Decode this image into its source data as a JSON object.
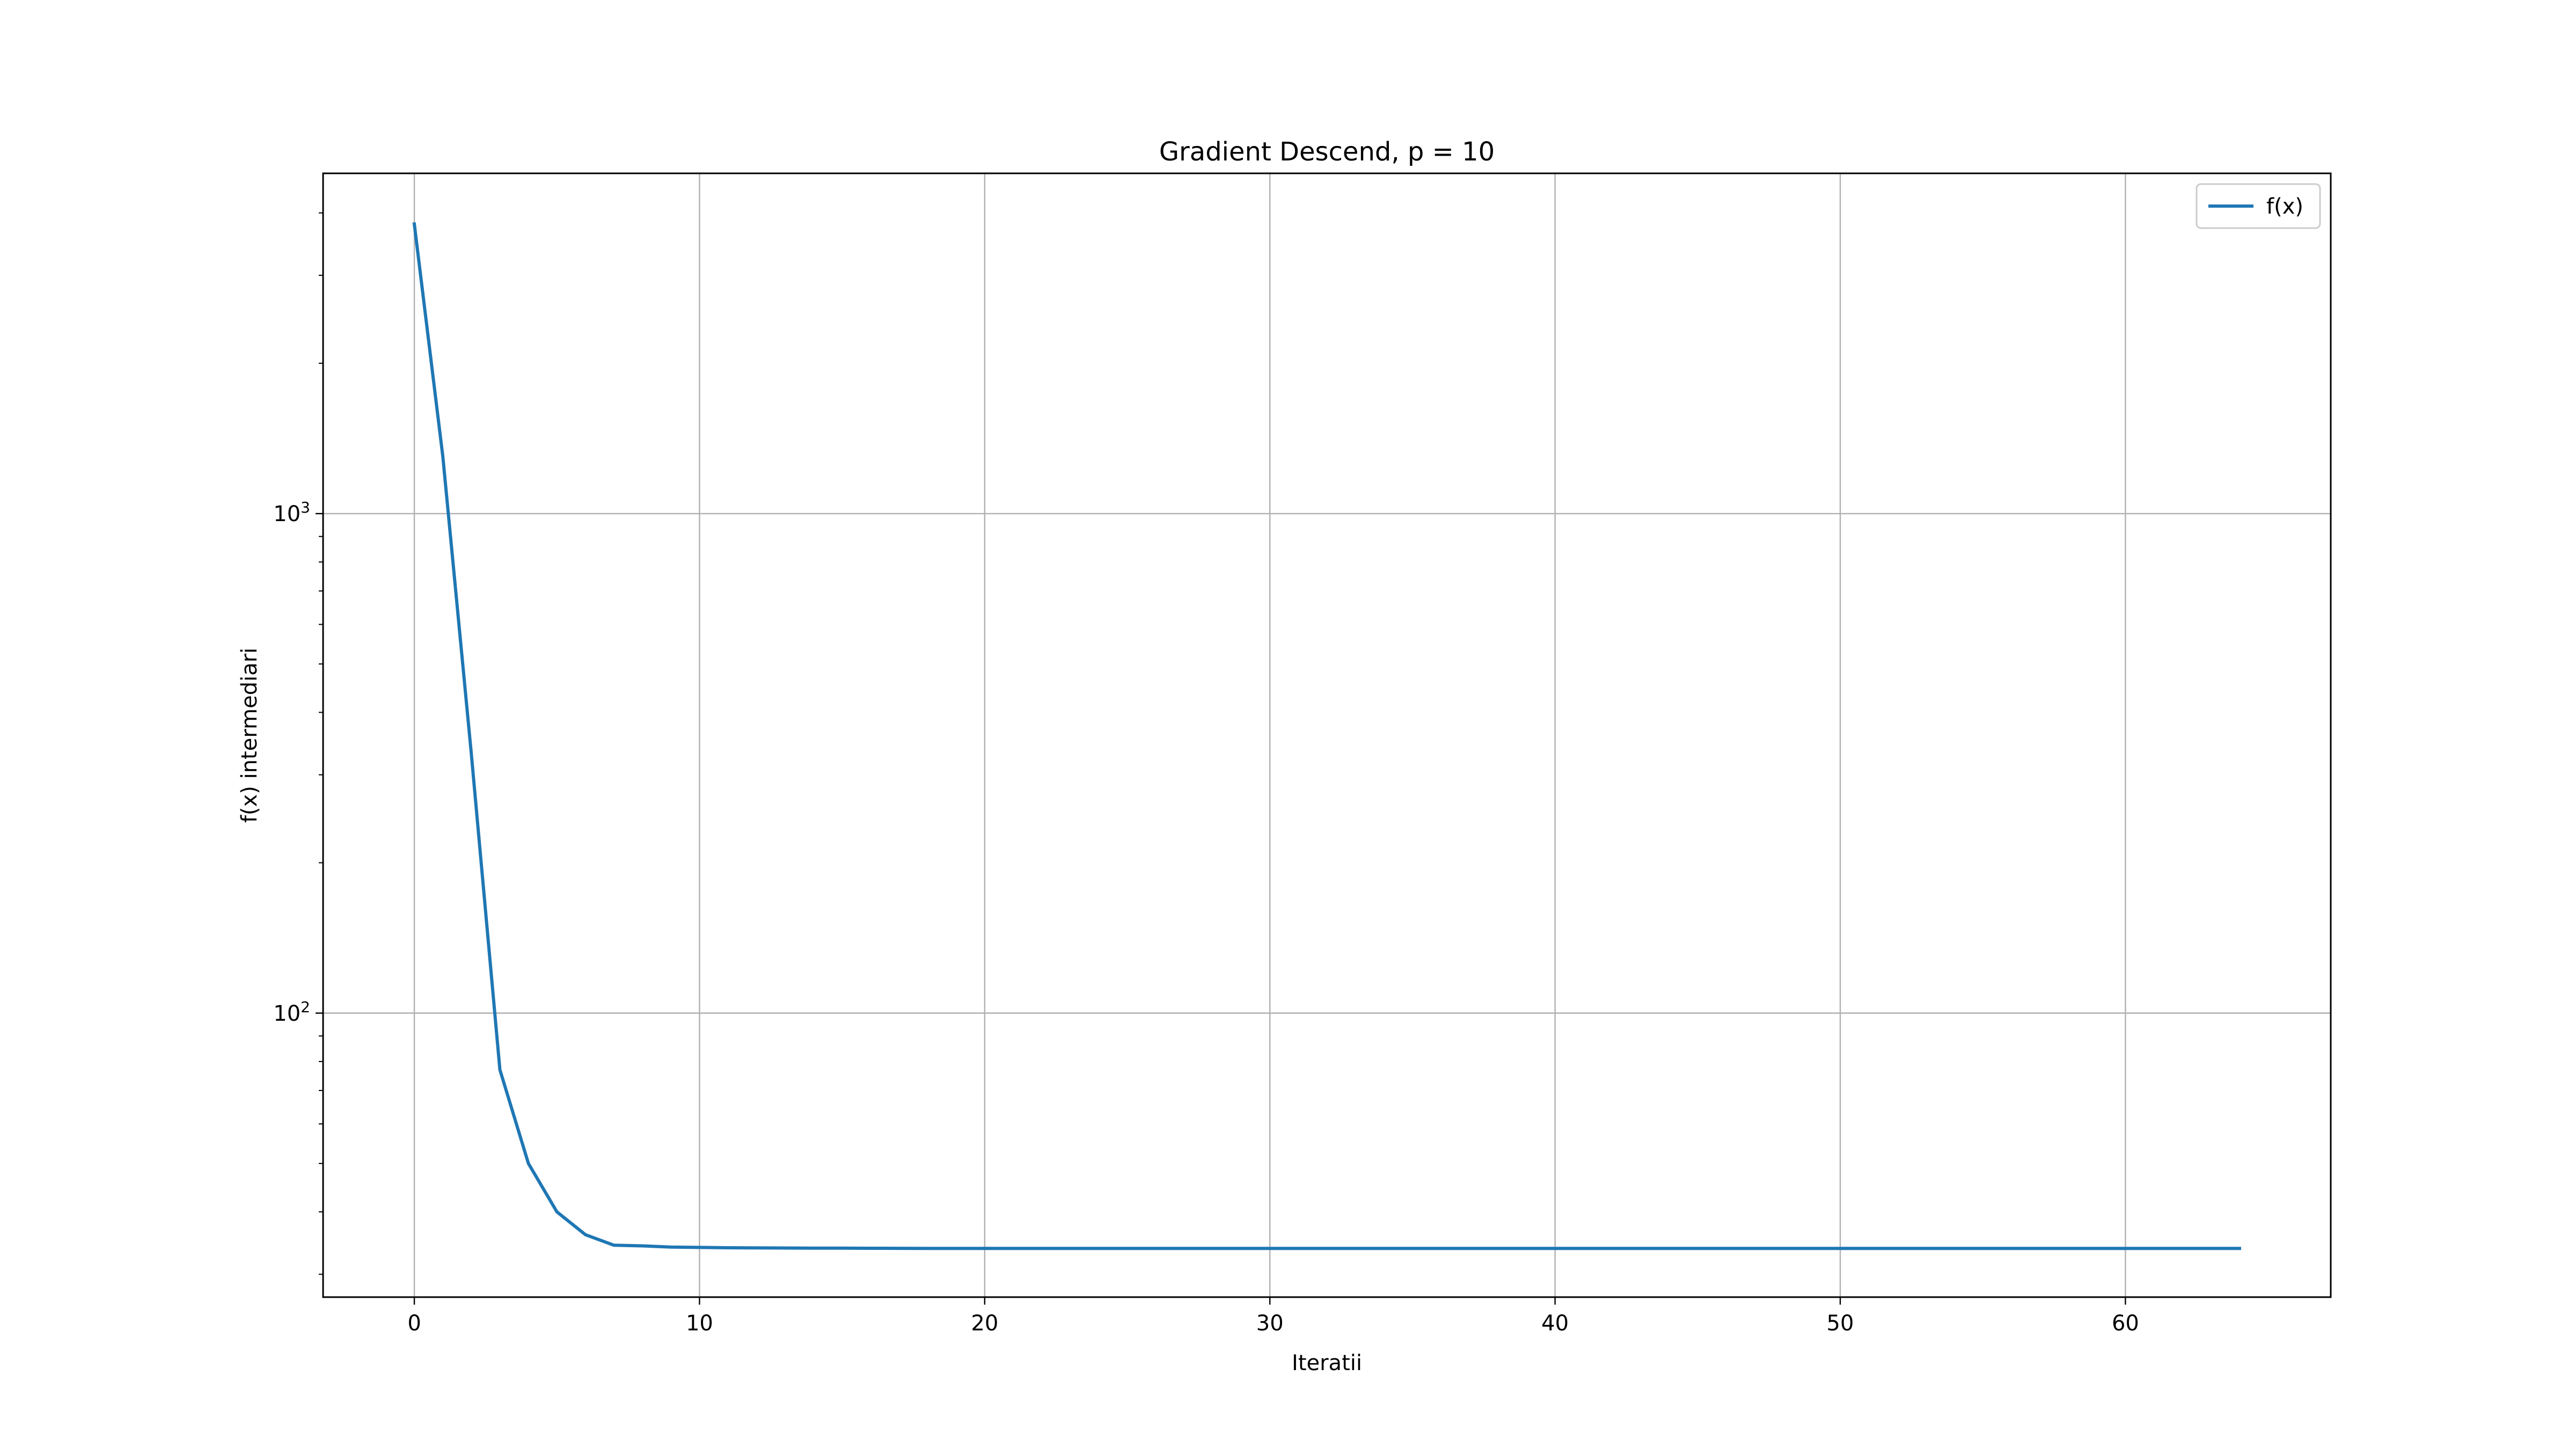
{
  "chart_data": {
    "type": "line",
    "title": "Gradient Descend, p = 10",
    "xlabel": "Iteratii",
    "ylabel": "f(x) intermediari",
    "y_scale": "log",
    "xlim": [
      -3.2,
      67.2
    ],
    "ylim": [
      27,
      4800
    ],
    "x_ticks": [
      0,
      10,
      20,
      30,
      40,
      50,
      60
    ],
    "x_tick_labels": [
      "0",
      "10",
      "20",
      "30",
      "40",
      "50",
      "60"
    ],
    "y_ticks": [
      100,
      1000
    ],
    "y_tick_labels": [
      {
        "base": "10",
        "exp": "2"
      },
      {
        "base": "10",
        "exp": "3"
      }
    ],
    "y_minor_ticks": [
      30,
      40,
      50,
      60,
      70,
      80,
      90,
      200,
      300,
      400,
      500,
      600,
      700,
      800,
      900,
      2000,
      3000,
      4000
    ],
    "grid": true,
    "legend": {
      "position": "top-right"
    },
    "series": [
      {
        "name": "f(x)",
        "color": "#1f77b4",
        "x": [
          0,
          1,
          2,
          3,
          4,
          5,
          6,
          7,
          8,
          9,
          10,
          11,
          12,
          13,
          14,
          15,
          16,
          17,
          18,
          19,
          20,
          25,
          30,
          35,
          40,
          45,
          50,
          55,
          60,
          64
        ],
        "y": [
          3800,
          1300,
          330,
          77,
          50,
          40,
          36,
          34.3,
          34.2,
          34.0,
          33.95,
          33.9,
          33.88,
          33.86,
          33.84,
          33.83,
          33.82,
          33.81,
          33.8,
          33.8,
          33.8,
          33.8,
          33.8,
          33.8,
          33.8,
          33.8,
          33.8,
          33.8,
          33.8,
          33.8
        ]
      }
    ]
  }
}
